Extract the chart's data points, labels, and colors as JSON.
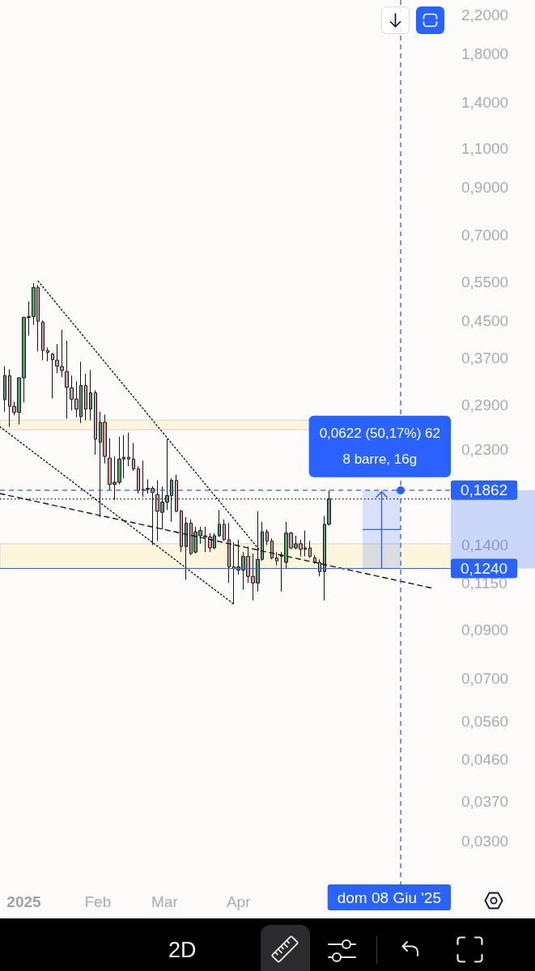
{
  "chart_data": {
    "type": "candlestick",
    "title": "2D",
    "log": "y",
    "marker": "none",
    "xlim": [
      "2024-12-22",
      "2025-06-29"
    ],
    "ylim": [
      0.024,
      2.38
    ],
    "xticks": [
      {
        "value": "2025-01-01",
        "label": "2025"
      },
      {
        "value": "2025-02-01",
        "label": "Feb"
      },
      {
        "value": "2025-03-01",
        "label": "Mar"
      },
      {
        "value": "2025-04-01",
        "label": "Apr"
      }
    ],
    "yticks": [
      {
        "value": 2.2,
        "label": "2,2000"
      },
      {
        "value": 1.8,
        "label": "1,8000"
      },
      {
        "value": 1.4,
        "label": "1,4000"
      },
      {
        "value": 1.1,
        "label": "1,1000"
      },
      {
        "value": 0.9,
        "label": "0,9000"
      },
      {
        "value": 0.7,
        "label": "0,7000"
      },
      {
        "value": 0.55,
        "label": "0,5500"
      },
      {
        "value": 0.45,
        "label": "0,4500"
      },
      {
        "value": 0.37,
        "label": "0,3700"
      },
      {
        "value": 0.29,
        "label": "0,2900"
      },
      {
        "value": 0.23,
        "label": "0,2300"
      },
      {
        "value": 0.14,
        "label": "0,1400"
      },
      {
        "value": 0.115,
        "label": "0,1150"
      },
      {
        "value": 0.09,
        "label": "0,0900"
      },
      {
        "value": 0.07,
        "label": "0,0700"
      },
      {
        "value": 0.056,
        "label": "0,0560"
      },
      {
        "value": 0.046,
        "label": "0,0460"
      },
      {
        "value": 0.037,
        "label": "0,0370"
      },
      {
        "value": 0.03,
        "label": "0,0300"
      }
    ],
    "series": [
      {
        "x": [
          "2024-12-24",
          "2024-12-26",
          "2024-12-28",
          "2024-12-30",
          "2025-01-01",
          "2025-01-03",
          "2025-01-05",
          "2025-01-07",
          "2025-01-09",
          "2025-01-11",
          "2025-01-13",
          "2025-01-15",
          "2025-01-17",
          "2025-01-19",
          "2025-01-21",
          "2025-01-23",
          "2025-01-25",
          "2025-01-27",
          "2025-01-29",
          "2025-01-31",
          "2025-02-02",
          "2025-02-04",
          "2025-02-06",
          "2025-02-08",
          "2025-02-10",
          "2025-02-12",
          "2025-02-14",
          "2025-02-16",
          "2025-02-18",
          "2025-02-20",
          "2025-02-22",
          "2025-02-24",
          "2025-02-26",
          "2025-02-28",
          "2025-03-02",
          "2025-03-04",
          "2025-03-06",
          "2025-03-08",
          "2025-03-10",
          "2025-03-12",
          "2025-03-14",
          "2025-03-16",
          "2025-03-18",
          "2025-03-20",
          "2025-03-22",
          "2025-03-24",
          "2025-03-26",
          "2025-03-28",
          "2025-03-30",
          "2025-04-01",
          "2025-04-03",
          "2025-04-05",
          "2025-04-07",
          "2025-04-09",
          "2025-04-11",
          "2025-04-13",
          "2025-04-15",
          "2025-04-17",
          "2025-04-19",
          "2025-04-21",
          "2025-04-23",
          "2025-04-25",
          "2025-04-27",
          "2025-04-29",
          "2025-05-01",
          "2025-05-03",
          "2025-05-05",
          "2025-05-07",
          "2025-05-09"
        ],
        "ohlc": [
          [
            0.298,
            0.355,
            0.28,
            0.338
          ],
          [
            0.338,
            0.349,
            0.259,
            0.288
          ],
          [
            0.288,
            0.295,
            0.275,
            0.279
          ],
          [
            0.279,
            0.335,
            0.262,
            0.334
          ],
          [
            0.334,
            0.459,
            0.294,
            0.457
          ],
          [
            0.457,
            0.497,
            0.416,
            0.459
          ],
          [
            0.459,
            0.546,
            0.44,
            0.534
          ],
          [
            0.534,
            0.541,
            0.383,
            0.448
          ],
          [
            0.446,
            0.45,
            0.366,
            0.385
          ],
          [
            0.385,
            0.391,
            0.364,
            0.381
          ],
          [
            0.378,
            0.38,
            0.3,
            0.367
          ],
          [
            0.366,
            0.398,
            0.342,
            0.355
          ],
          [
            0.354,
            0.429,
            0.335,
            0.347
          ],
          [
            0.345,
            0.405,
            0.27,
            0.318
          ],
          [
            0.317,
            0.338,
            0.282,
            0.299
          ],
          [
            0.299,
            0.328,
            0.272,
            0.284
          ],
          [
            0.273,
            0.363,
            0.264,
            0.321
          ],
          [
            0.321,
            0.341,
            0.268,
            0.284
          ],
          [
            0.284,
            0.348,
            0.268,
            0.309
          ],
          [
            0.309,
            0.313,
            0.224,
            0.243
          ],
          [
            0.239,
            0.28,
            0.162,
            0.265
          ],
          [
            0.265,
            0.276,
            0.214,
            0.222
          ],
          [
            0.22,
            0.244,
            0.186,
            0.192
          ],
          [
            0.192,
            0.222,
            0.177,
            0.194
          ],
          [
            0.194,
            0.246,
            0.192,
            0.219
          ],
          [
            0.219,
            0.248,
            0.198,
            0.221
          ],
          [
            0.221,
            0.251,
            0.211,
            0.219
          ],
          [
            0.219,
            0.238,
            0.206,
            0.208
          ],
          [
            0.208,
            0.211,
            0.183,
            0.186
          ],
          [
            0.186,
            0.217,
            0.18,
            0.187
          ],
          [
            0.187,
            0.197,
            0.183,
            0.188
          ],
          [
            0.188,
            0.19,
            0.14,
            0.184
          ],
          [
            0.182,
            0.196,
            0.143,
            0.167
          ],
          [
            0.166,
            0.19,
            0.152,
            0.175
          ],
          [
            0.175,
            0.243,
            0.168,
            0.181
          ],
          [
            0.181,
            0.198,
            0.158,
            0.196
          ],
          [
            0.196,
            0.202,
            0.166,
            0.167
          ],
          [
            0.167,
            0.168,
            0.135,
            0.139
          ],
          [
            0.139,
            0.162,
            0.117,
            0.157
          ],
          [
            0.157,
            0.16,
            0.133,
            0.134
          ],
          [
            0.135,
            0.154,
            0.134,
            0.15
          ],
          [
            0.147,
            0.154,
            0.141,
            0.151
          ],
          [
            0.147,
            0.154,
            0.135,
            0.146
          ],
          [
            0.146,
            0.149,
            0.135,
            0.138
          ],
          [
            0.138,
            0.149,
            0.137,
            0.147
          ],
          [
            0.147,
            0.168,
            0.146,
            0.156
          ],
          [
            0.156,
            0.16,
            0.143,
            0.144
          ],
          [
            0.144,
            0.157,
            0.115,
            0.125
          ],
          [
            0.125,
            0.142,
            0.103,
            0.124
          ],
          [
            0.123,
            0.144,
            0.12,
            0.125
          ],
          [
            0.123,
            0.135,
            0.111,
            0.132
          ],
          [
            0.132,
            0.139,
            0.115,
            0.119
          ],
          [
            0.119,
            0.134,
            0.105,
            0.115
          ],
          [
            0.115,
            0.167,
            0.11,
            0.13
          ],
          [
            0.13,
            0.158,
            0.129,
            0.15
          ],
          [
            0.15,
            0.152,
            0.14,
            0.143
          ],
          [
            0.143,
            0.145,
            0.13,
            0.131
          ],
          [
            0.131,
            0.135,
            0.126,
            0.129
          ],
          [
            0.132,
            0.135,
            0.11,
            0.133
          ],
          [
            0.128,
            0.158,
            0.124,
            0.149
          ],
          [
            0.149,
            0.15,
            0.137,
            0.138
          ],
          [
            0.138,
            0.147,
            0.137,
            0.141
          ],
          [
            0.141,
            0.144,
            0.132,
            0.137
          ],
          [
            0.137,
            0.151,
            0.132,
            0.138
          ],
          [
            0.138,
            0.143,
            0.131,
            0.132
          ],
          [
            0.131,
            0.133,
            0.127,
            0.128
          ],
          [
            0.128,
            0.13,
            0.119,
            0.122
          ],
          [
            0.122,
            0.163,
            0.105,
            0.156
          ],
          [
            0.156,
            0.186,
            0.155,
            0.178
          ]
        ],
        "colors": [
          "#5a9a70",
          "#cf98a3",
          "#cf98a3",
          "#5a9a70",
          "#5a9a70",
          "#5a9a70",
          "#5a9a70",
          "#cf98a3",
          "#cf98a3",
          "#cf98a3",
          "#cf98a3",
          "#cf98a3",
          "#cf98a3",
          "#cf98a3",
          "#cf98a3",
          "#cf98a3",
          "#5a9a70",
          "#cf98a3",
          "#5a9a70",
          "#cf98a3",
          "#5a9a70",
          "#cf98a3",
          "#cf98a3",
          "#5a9a70",
          "#5a9a70",
          "#5a9a70",
          "#cf98a3",
          "#cf98a3",
          "#cf98a3",
          "#5a9a70",
          "#5a9a70",
          "#cf98a3",
          "#cf98a3",
          "#5a9a70",
          "#5a9a70",
          "#5a9a70",
          "#cf98a3",
          "#cf98a3",
          "#5a9a70",
          "#cf98a3",
          "#5a9a70",
          "#5a9a70",
          "#cf98a3",
          "#cf98a3",
          "#5a9a70",
          "#5a9a70",
          "#cf98a3",
          "#cf98a3",
          "#cf98a3",
          "#5a9a70",
          "#5a9a70",
          "#cf98a3",
          "#cf98a3",
          "#5a9a70",
          "#5a9a70",
          "#cf98a3",
          "#cf98a3",
          "#cf98a3",
          "#5a9a70",
          "#5a9a70",
          "#cf98a3",
          "#5a9a70",
          "#cf98a3",
          "#5a9a70",
          "#cf98a3",
          "#cf98a3",
          "#cf98a3",
          "#5a9a70",
          "#5a9a70"
        ]
      },
      {
        "type": "line",
        "x": [
          "2025-01-07",
          "2025-04-10"
        ],
        "values": [
          0.552,
          0.136
        ],
        "color": "#131722",
        "line_style": "dotted"
      },
      {
        "type": "line",
        "x": [
          "2024-12-22",
          "2025-03-30"
        ],
        "values": [
          0.259,
          0.103
        ],
        "color": "#131722",
        "line_style": "dotted"
      },
      {
        "type": "line",
        "x": [
          "2024-12-22",
          "2025-06-21"
        ],
        "values": [
          0.183,
          0.112
        ],
        "color": "#131722",
        "line_style": "dashed"
      },
      {
        "type": "bar",
        "x": [
          "2025-05-31"
        ],
        "base": [
          0.124
        ],
        "values": [
          0.0622
        ],
        "color": "#2962ff"
      }
    ],
    "bands": [
      {
        "axis": "y",
        "from": 0.124,
        "to": 0.141,
        "color": "#fdf6dd"
      },
      {
        "axis": "y",
        "from": 0.255,
        "to": 0.268,
        "color": "#fdf6dd"
      }
    ],
    "ref_lines": [
      {
        "axis": "y",
        "value": 0.1862,
        "label": "0,1862",
        "color": "#2962ff",
        "line_style": "dashed"
      },
      {
        "axis": "y",
        "value": 0.178,
        "color": "#131722",
        "line_style": "dotted"
      },
      {
        "axis": "y",
        "value": 0.124,
        "label": "0,1240",
        "color": "#2962ff",
        "line_style": "solid"
      },
      {
        "axis": "x",
        "value": "2025-06-08",
        "label": "dom 08 Giu '25",
        "color": "#2962ff",
        "line_style": "dashed"
      }
    ],
    "annotations": [
      "0,0622 (50,17%) 62",
      "8 barre, 16g"
    ]
  }
}
